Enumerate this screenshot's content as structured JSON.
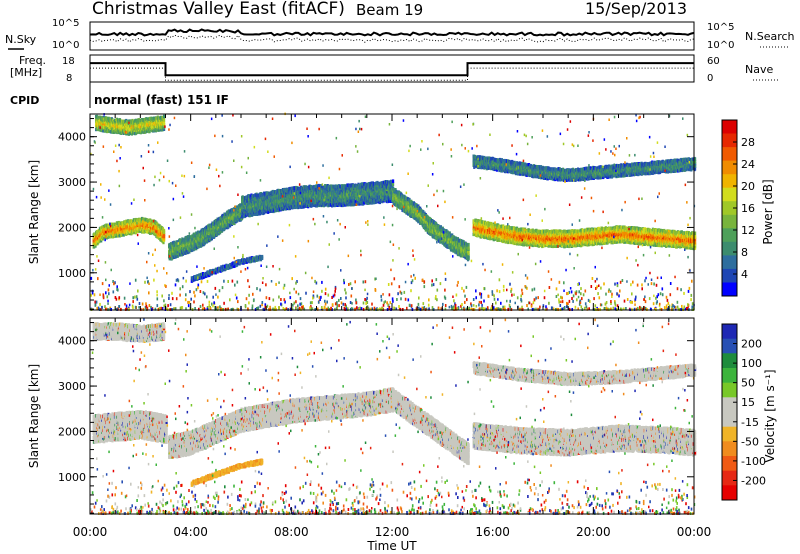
{
  "header": {
    "radar": "Christmas Valley East (fitACF)",
    "beam": "Beam 19",
    "date": "15/Sep/2013"
  },
  "summary": {
    "nsky_label": "N.Sky",
    "nsky_ticks": [
      "10^5",
      "10^0"
    ],
    "nsearch_label": "N.Search",
    "freq_label_1": "Freq.",
    "freq_label_2": "[MHz]",
    "freq_ticks": [
      "18",
      "8"
    ],
    "nave_label": "Nave",
    "nave_ticks": [
      "60",
      "0"
    ],
    "cpid_label": "CPID",
    "cpid_value": "normal (fast) 151 IF",
    "freq_mhz_by_hour": [
      [
        0,
        15
      ],
      [
        3,
        15
      ],
      [
        3,
        10.5
      ],
      [
        15,
        10.5
      ],
      [
        15,
        15
      ],
      [
        24,
        15
      ]
    ]
  },
  "chart_data": [
    {
      "type": "heatmap",
      "title": "",
      "xlabel": "Time UT",
      "ylabel": "Slant Range [km]",
      "x_ticks": [
        "00:00",
        "04:00",
        "08:00",
        "12:00",
        "16:00",
        "20:00",
        "00:00"
      ],
      "xlim_hours": [
        0,
        24
      ],
      "y_ticks": [
        "1000",
        "2000",
        "3000",
        "4000"
      ],
      "ylim_km": [
        180,
        4500
      ],
      "colorbar": {
        "label": "Power [dB]",
        "ticks": [
          "4",
          "8",
          "12",
          "16",
          "20",
          "24",
          "28"
        ],
        "range": [
          0,
          32
        ],
        "colors": [
          "#0000ff",
          "#1e46b4",
          "#2e6e9e",
          "#3c8c6e",
          "#4ea05a",
          "#78b43c",
          "#a0c828",
          "#d2dc1e",
          "#f0b400",
          "#f08c00",
          "#f05a00",
          "#e62800",
          "#dc0000"
        ]
      },
      "echo_bands": [
        {
          "name": "",
          "hours": [
            0.1,
            0.5,
            1.0,
            1.5,
            2.0,
            2.5,
            2.9
          ],
          "range_km": [
            1700,
            1900,
            1950,
            2000,
            2050,
            2000,
            1800
          ],
          "width_km": 300,
          "power_db": 26
        },
        {
          "name": "",
          "hours": [
            3.1,
            3.5,
            4.0,
            4.5,
            5.0,
            5.5,
            6.0
          ],
          "range_km": [
            1450,
            1550,
            1650,
            1800,
            2000,
            2200,
            2350
          ],
          "width_km": 350,
          "power_db": 12
        },
        {
          "name": "",
          "hours": [
            4.0,
            4.5,
            5.0,
            5.5,
            6.0,
            6.5,
            6.8
          ],
          "range_km": [
            850,
            950,
            1050,
            1150,
            1250,
            1300,
            1330
          ],
          "width_km": 90,
          "power_db": 6
        },
        {
          "name": "",
          "hours": [
            6.0,
            7.0,
            8.0,
            9.0,
            10.0,
            11.0,
            12.0
          ],
          "range_km": [
            2450,
            2550,
            2650,
            2700,
            2700,
            2750,
            2800
          ],
          "width_km": 450,
          "power_db": 9
        },
        {
          "name": "",
          "hours": [
            12.0,
            12.5,
            13.0,
            13.5,
            14.0,
            14.5,
            15.0
          ],
          "range_km": [
            2700,
            2500,
            2300,
            2000,
            1800,
            1600,
            1450
          ],
          "width_km": 350,
          "power_db": 14
        },
        {
          "name": "",
          "hours": [
            15.2,
            16.0,
            17.0,
            18.0,
            19.0,
            20.0,
            21.0,
            22.0,
            23.0,
            24.0
          ],
          "range_km": [
            2000,
            1900,
            1800,
            1750,
            1750,
            1800,
            1850,
            1800,
            1750,
            1700
          ],
          "width_km": 350,
          "power_db": 27
        },
        {
          "name": "",
          "hours": [
            15.2,
            16.0,
            17.0,
            18.0,
            19.0,
            20.0,
            21.0,
            22.0,
            23.0,
            24.0
          ],
          "range_km": [
            3450,
            3400,
            3300,
            3200,
            3150,
            3200,
            3250,
            3300,
            3350,
            3400
          ],
          "width_km": 250,
          "power_db": 9
        },
        {
          "name": "",
          "hours": [
            0.2,
            0.8,
            1.5,
            2.2,
            2.9
          ],
          "range_km": [
            4300,
            4250,
            4200,
            4250,
            4300
          ],
          "width_km": 300,
          "power_db": 20
        }
      ]
    },
    {
      "type": "heatmap",
      "title": "",
      "xlabel": "Time UT",
      "ylabel": "Slant Range [km]",
      "x_ticks": [
        "00:00",
        "04:00",
        "08:00",
        "12:00",
        "16:00",
        "20:00",
        "00:00"
      ],
      "xlim_hours": [
        0,
        24
      ],
      "y_ticks": [
        "1000",
        "2000",
        "3000",
        "4000"
      ],
      "ylim_km": [
        180,
        4500
      ],
      "colorbar": {
        "label": "Velocity [m s⁻¹]",
        "ticks": [
          "200",
          "100",
          "50",
          "15",
          "-15",
          "-50",
          "-100",
          "-200"
        ],
        "colors": [
          "#1e28b4",
          "#2850b4",
          "#1e8c3c",
          "#3cb43c",
          "#78c828",
          "#c8c8c0",
          "#c8c8c0",
          "#f0b428",
          "#f08c1e",
          "#f05a14",
          "#e62814",
          "#e60000"
        ]
      },
      "echo_bands": [
        {
          "name": "",
          "hours": [
            0.1,
            1.0,
            2.0,
            2.9
          ],
          "range_km": [
            4200,
            4200,
            4150,
            4200
          ],
          "width_km": 350,
          "velocity": 0
        },
        {
          "name": "",
          "hours": [
            3.1,
            4.0,
            5.0,
            6.0,
            7.0,
            8.0,
            9.0,
            10.0,
            11.0,
            12.0
          ],
          "range_km": [
            1650,
            1750,
            2000,
            2250,
            2350,
            2450,
            2500,
            2550,
            2600,
            2700
          ],
          "width_km": 500,
          "velocity": 0
        },
        {
          "name": "",
          "hours": [
            0.1,
            1.0,
            2.0,
            3.0
          ],
          "range_km": [
            2050,
            2100,
            2150,
            2050
          ],
          "width_km": 600,
          "velocity": 0
        },
        {
          "name": "",
          "hours": [
            12.0,
            13.0,
            14.0,
            15.0
          ],
          "range_km": [
            2700,
            2300,
            1900,
            1500
          ],
          "width_km": 450,
          "velocity": 0
        },
        {
          "name": "",
          "hours": [
            4.0,
            5.0,
            6.0,
            6.8
          ],
          "range_km": [
            850,
            1050,
            1250,
            1330
          ],
          "width_km": 90,
          "velocity": -50
        },
        {
          "name": "",
          "hours": [
            15.2,
            17.0,
            19.0,
            21.0,
            23.0,
            24.0
          ],
          "range_km": [
            1900,
            1800,
            1750,
            1850,
            1800,
            1750
          ],
          "width_km": 550,
          "velocity": 0
        },
        {
          "name": "",
          "hours": [
            15.2,
            17.0,
            19.0,
            21.0,
            23.0,
            24.0
          ],
          "range_km": [
            3400,
            3250,
            3150,
            3200,
            3300,
            3350
          ],
          "width_km": 250,
          "velocity": 0
        }
      ]
    }
  ]
}
